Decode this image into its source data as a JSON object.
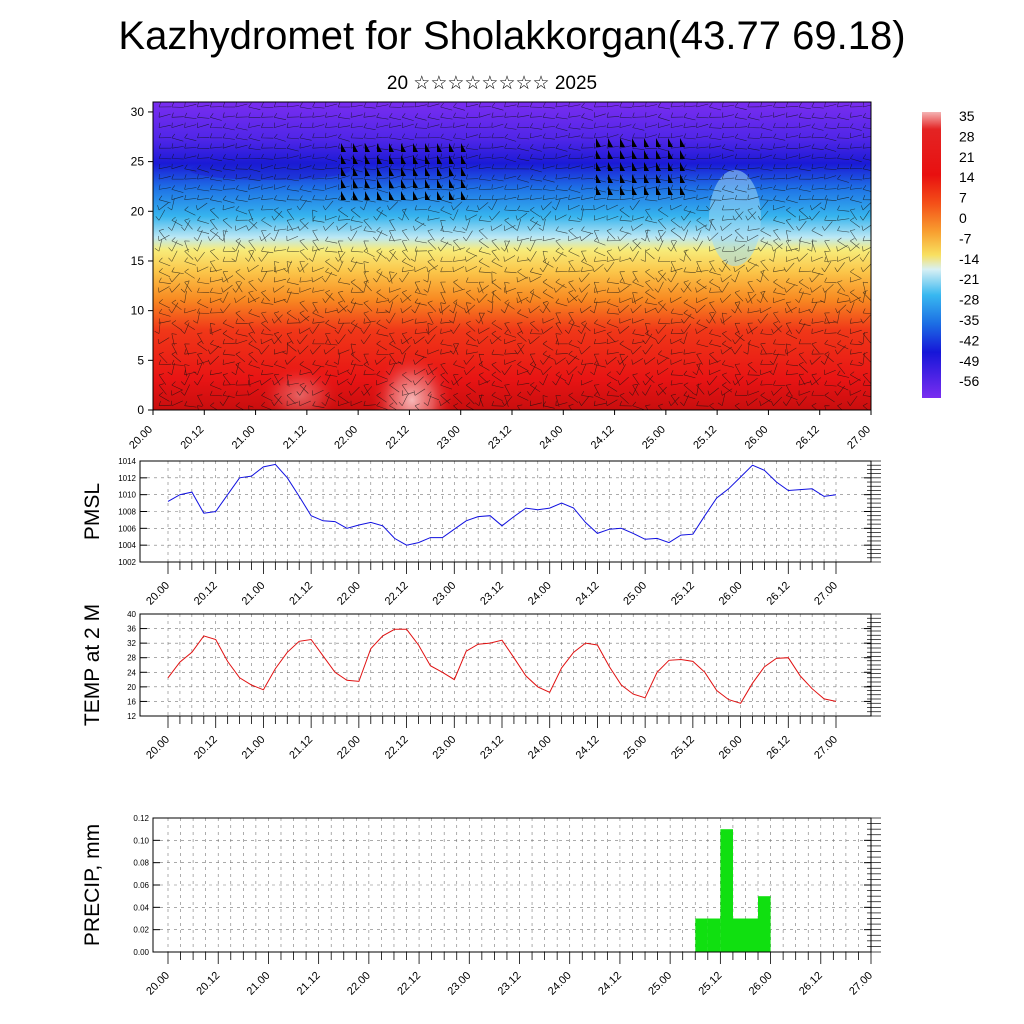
{
  "title": "Kazhydromet for Sholakkorgan(43.77 69.18)",
  "subtitle": "20 ☆☆☆☆☆☆☆☆ 2025",
  "x_ticks": [
    "20.00",
    "20.12",
    "21.00",
    "21.12",
    "22.00",
    "22.12",
    "23.00",
    "23.12",
    "24.00",
    "24.12",
    "25.00",
    "25.12",
    "26.00",
    "26.12",
    "27.00"
  ],
  "chart_data": [
    {
      "type": "heatmap",
      "name": "cross-section",
      "y_ticks": [
        0,
        5,
        10,
        15,
        20,
        25,
        30
      ],
      "ylim": [
        0,
        31
      ],
      "colorbar_labels": [
        "35",
        "28",
        "21",
        "14",
        "7",
        "0",
        "-7",
        "-14",
        "-21",
        "-28",
        "-35",
        "-42",
        "-49",
        "-56"
      ],
      "colors": {
        "top": "#7a2df0",
        "mid_blue": "#2020e0",
        "cyan": "#38b8f0",
        "yellow": "#f8e050",
        "orange": "#f88020",
        "red": "#e01010",
        "hot": "#f08080"
      }
    },
    {
      "type": "line",
      "ylabel": "PMSL",
      "ylim": [
        1002,
        1014
      ],
      "y_ticks": [
        1002,
        1004,
        1006,
        1008,
        1010,
        1012,
        1014
      ],
      "color": "#1010e0",
      "values": [
        1009.2,
        1010.0,
        1010.3,
        1007.8,
        1008.0,
        1010.0,
        1012.0,
        1012.2,
        1013.3,
        1013.6,
        1012.0,
        1009.8,
        1007.5,
        1006.9,
        1006.8,
        1006.0,
        1006.4,
        1006.7,
        1006.3,
        1004.8,
        1004.0,
        1004.3,
        1004.9,
        1004.9,
        1005.9,
        1006.9,
        1007.4,
        1007.5,
        1006.3,
        1007.4,
        1008.4,
        1008.2,
        1008.4,
        1009.0,
        1008.4,
        1006.7,
        1005.4,
        1005.9,
        1006.0,
        1005.4,
        1004.7,
        1004.8,
        1004.3,
        1005.2,
        1005.3,
        1007.5,
        1009.6,
        1010.7,
        1012.1,
        1013.5,
        1012.9,
        1011.5,
        1010.5,
        1010.6,
        1010.7,
        1009.8,
        1010.0
      ]
    },
    {
      "type": "line",
      "ylabel": "TEMP at 2 M",
      "ylim": [
        12,
        40
      ],
      "y_ticks": [
        12,
        16,
        20,
        24,
        28,
        32,
        36,
        40
      ],
      "color": "#e01010",
      "values": [
        22.5,
        26.8,
        29.5,
        34.0,
        33.0,
        27.0,
        22.5,
        20.5,
        19.2,
        25.0,
        29.5,
        32.5,
        33.0,
        28.5,
        24.0,
        21.8,
        21.5,
        30.5,
        34.0,
        35.8,
        35.8,
        31.5,
        25.8,
        24.0,
        22.0,
        29.8,
        31.7,
        32.0,
        32.8,
        28.0,
        23.0,
        20.0,
        18.5,
        25.2,
        29.5,
        32.0,
        31.5,
        25.5,
        20.5,
        18.0,
        17.0,
        24.0,
        27.3,
        27.5,
        27.0,
        24.0,
        19.0,
        16.5,
        15.5,
        21.0,
        25.5,
        27.8,
        28.0,
        23.0,
        19.5,
        16.7,
        16.0
      ]
    },
    {
      "type": "bar",
      "ylabel": "PRECIP, mm",
      "ylim": [
        0,
        0.12
      ],
      "y_ticks": [
        "0.00",
        "0.02",
        "0.04",
        "0.06",
        "0.08",
        "0.10",
        "0.12"
      ],
      "color": "#10e010",
      "values": [
        0,
        0,
        0,
        0,
        0,
        0,
        0,
        0,
        0,
        0,
        0,
        0,
        0,
        0,
        0,
        0,
        0,
        0,
        0,
        0,
        0,
        0,
        0,
        0,
        0,
        0,
        0,
        0,
        0,
        0,
        0,
        0,
        0,
        0,
        0,
        0,
        0,
        0,
        0,
        0,
        0,
        0,
        0.03,
        0.03,
        0.11,
        0.03,
        0.03,
        0.05,
        0,
        0,
        0,
        0,
        0,
        0,
        0,
        0
      ]
    }
  ]
}
